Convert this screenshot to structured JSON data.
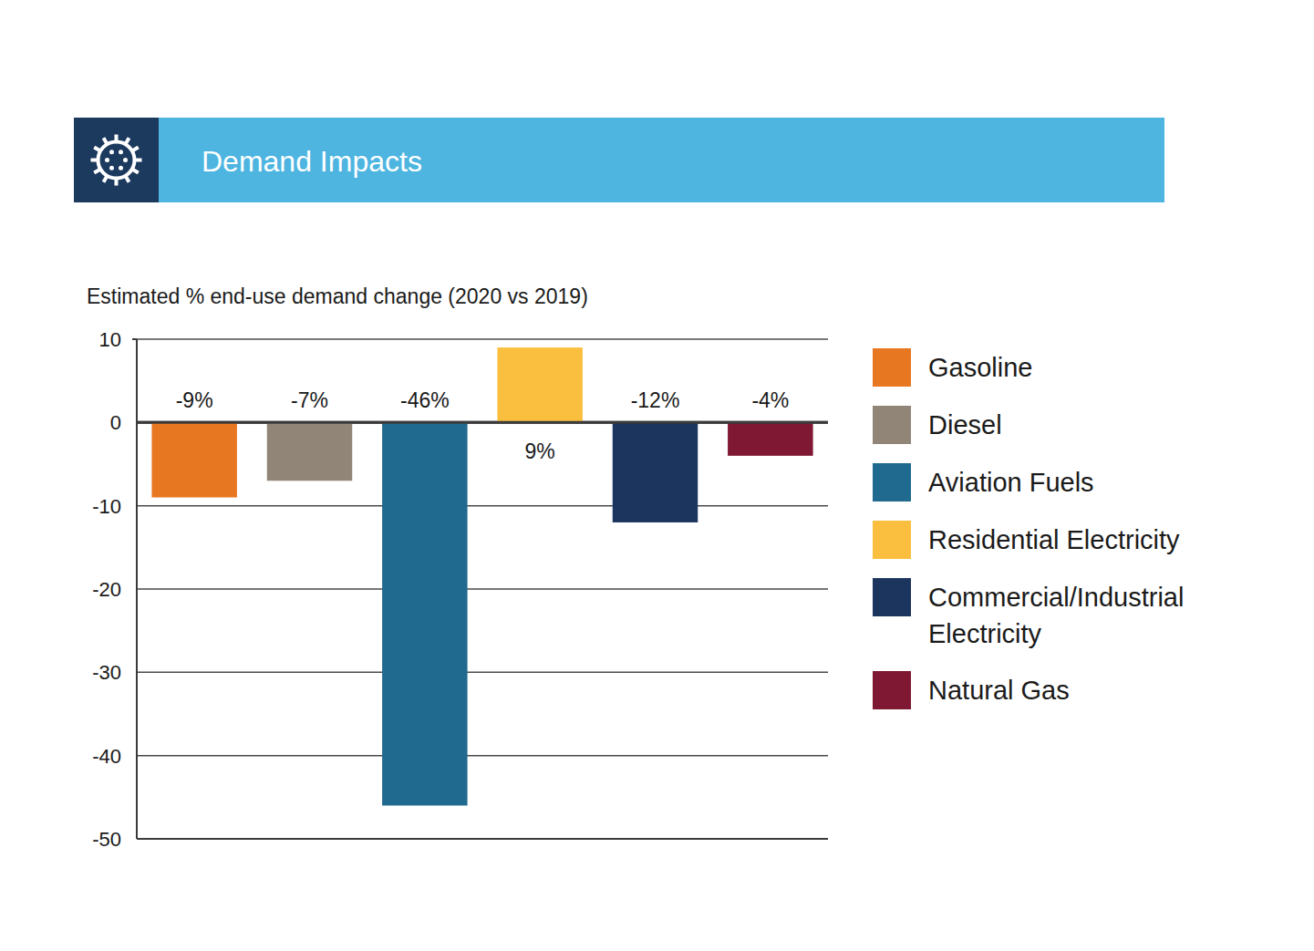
{
  "chart_data": {
    "type": "bar",
    "title": "Demand Impacts",
    "subtitle": "Estimated % end-use demand change (2020 vs 2019)",
    "categories": [
      "Gasoline",
      "Diesel",
      "Aviation Fuels",
      "Residential Electricity",
      "Commercial/Industrial Electricity",
      "Natural Gas"
    ],
    "values": [
      -9,
      -7,
      -46,
      9,
      -12,
      -4
    ],
    "value_labels": [
      "-9%",
      "-7%",
      "-46%",
      "9%",
      "-12%",
      "-4%"
    ],
    "colors": [
      "#e87722",
      "#918578",
      "#1f6a8e",
      "#fbbf3f",
      "#1c355e",
      "#7f1832"
    ],
    "ylim": [
      -50,
      10
    ],
    "yticks": [
      -50,
      -40,
      -30,
      -20,
      -10,
      0,
      10
    ],
    "grid": true,
    "legend": "right",
    "data_labels": true,
    "tick_labels": "y"
  }
}
